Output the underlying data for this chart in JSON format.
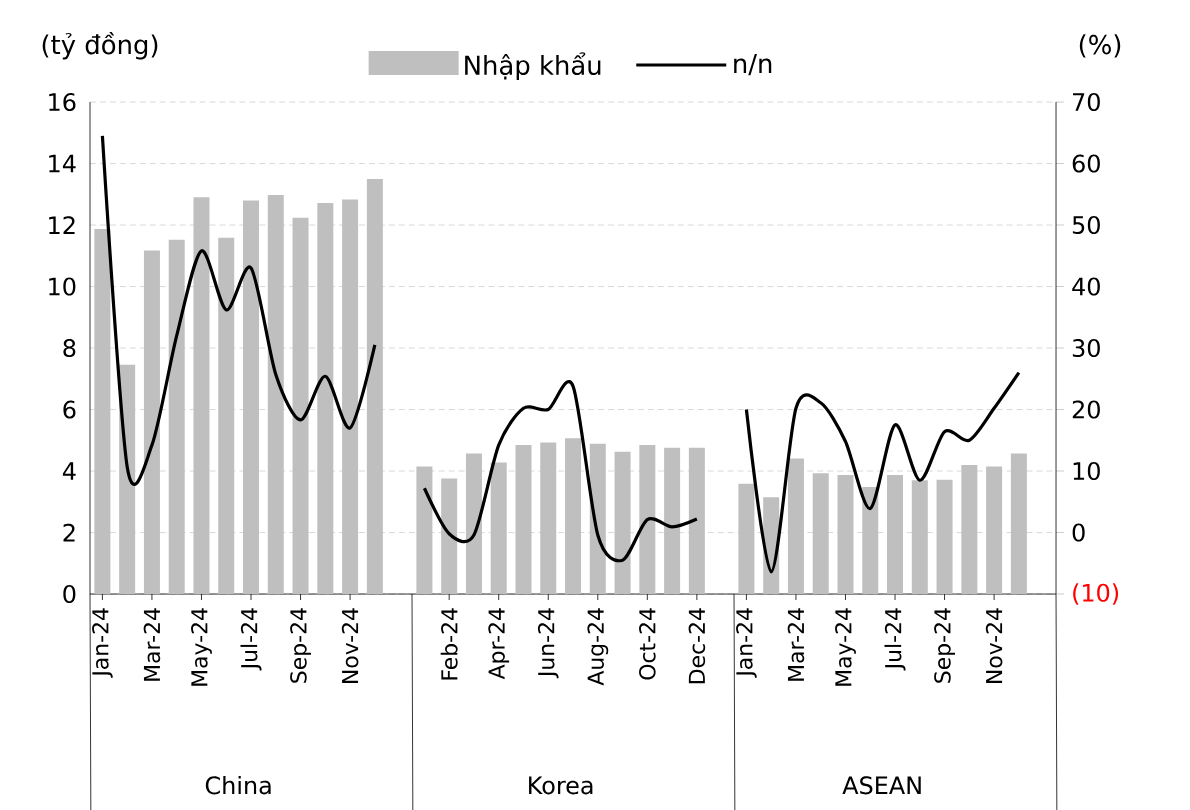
{
  "chart_data": {
    "type": "bar",
    "categories": [
      "Jan-24",
      null,
      "Mar-24",
      null,
      "May-24",
      null,
      "Jul-24",
      null,
      "Sep-24",
      null,
      "Nov-24",
      null,
      null,
      null,
      "Feb-24",
      null,
      "Apr-24",
      null,
      "Jun-24",
      null,
      "Aug-24",
      null,
      "Oct-24",
      null,
      "Dec-24",
      null,
      "Jan-24",
      null,
      "Mar-24",
      null,
      "May-24",
      null,
      "Jul-24",
      null,
      "Sep-24",
      null,
      "Nov-24",
      null,
      null
    ],
    "series": [
      {
        "name": "Nhập khẩu",
        "color": "#bfbfbf",
        "values": [
          11.87,
          7.46,
          11.17,
          11.52,
          12.9,
          11.59,
          12.8,
          12.98,
          12.24,
          12.72,
          12.83,
          13.5,
          null,
          4.15,
          3.76,
          4.57,
          4.28,
          4.85,
          4.93,
          5.07,
          4.89,
          4.63,
          4.85,
          4.76,
          4.76,
          null,
          3.59,
          3.15,
          4.41,
          3.93,
          3.87,
          3.48,
          3.87,
          3.7,
          3.72,
          4.2,
          4.15,
          4.57,
          null
        ]
      },
      {
        "name": "n/n",
        "type": "line",
        "axis": "y2",
        "color": "#000000",
        "values": [
          64.5,
          10.7,
          14.2,
          32,
          45.8,
          36.2,
          43,
          25.7,
          18.3,
          25.4,
          17,
          30.5,
          null,
          7.2,
          -0.2,
          -0.4,
          14.2,
          20.2,
          20,
          23.8,
          -0.4,
          -4.5,
          2.1,
          0.9,
          2.2,
          null,
          20,
          -6.4,
          20.2,
          21.1,
          14.8,
          3.9,
          17.5,
          8.5,
          16.4,
          15,
          20.2,
          26,
          null
        ]
      }
    ],
    "ylabel": "(tỷ đồng)",
    "y2label": "(%)",
    "ylim": [
      0,
      16
    ],
    "yticks": [
      0,
      2,
      4,
      6,
      8,
      10,
      12,
      14,
      16
    ],
    "y2lim": [
      -10,
      70
    ],
    "y2ticks": [
      {
        "value": -10,
        "label": "(10)"
      },
      0,
      10,
      20,
      30,
      40,
      50,
      60,
      70
    ],
    "annotations": [
      "China",
      "Korea",
      "ASEAN"
    ],
    "grid": "y",
    "legend": "top"
  }
}
